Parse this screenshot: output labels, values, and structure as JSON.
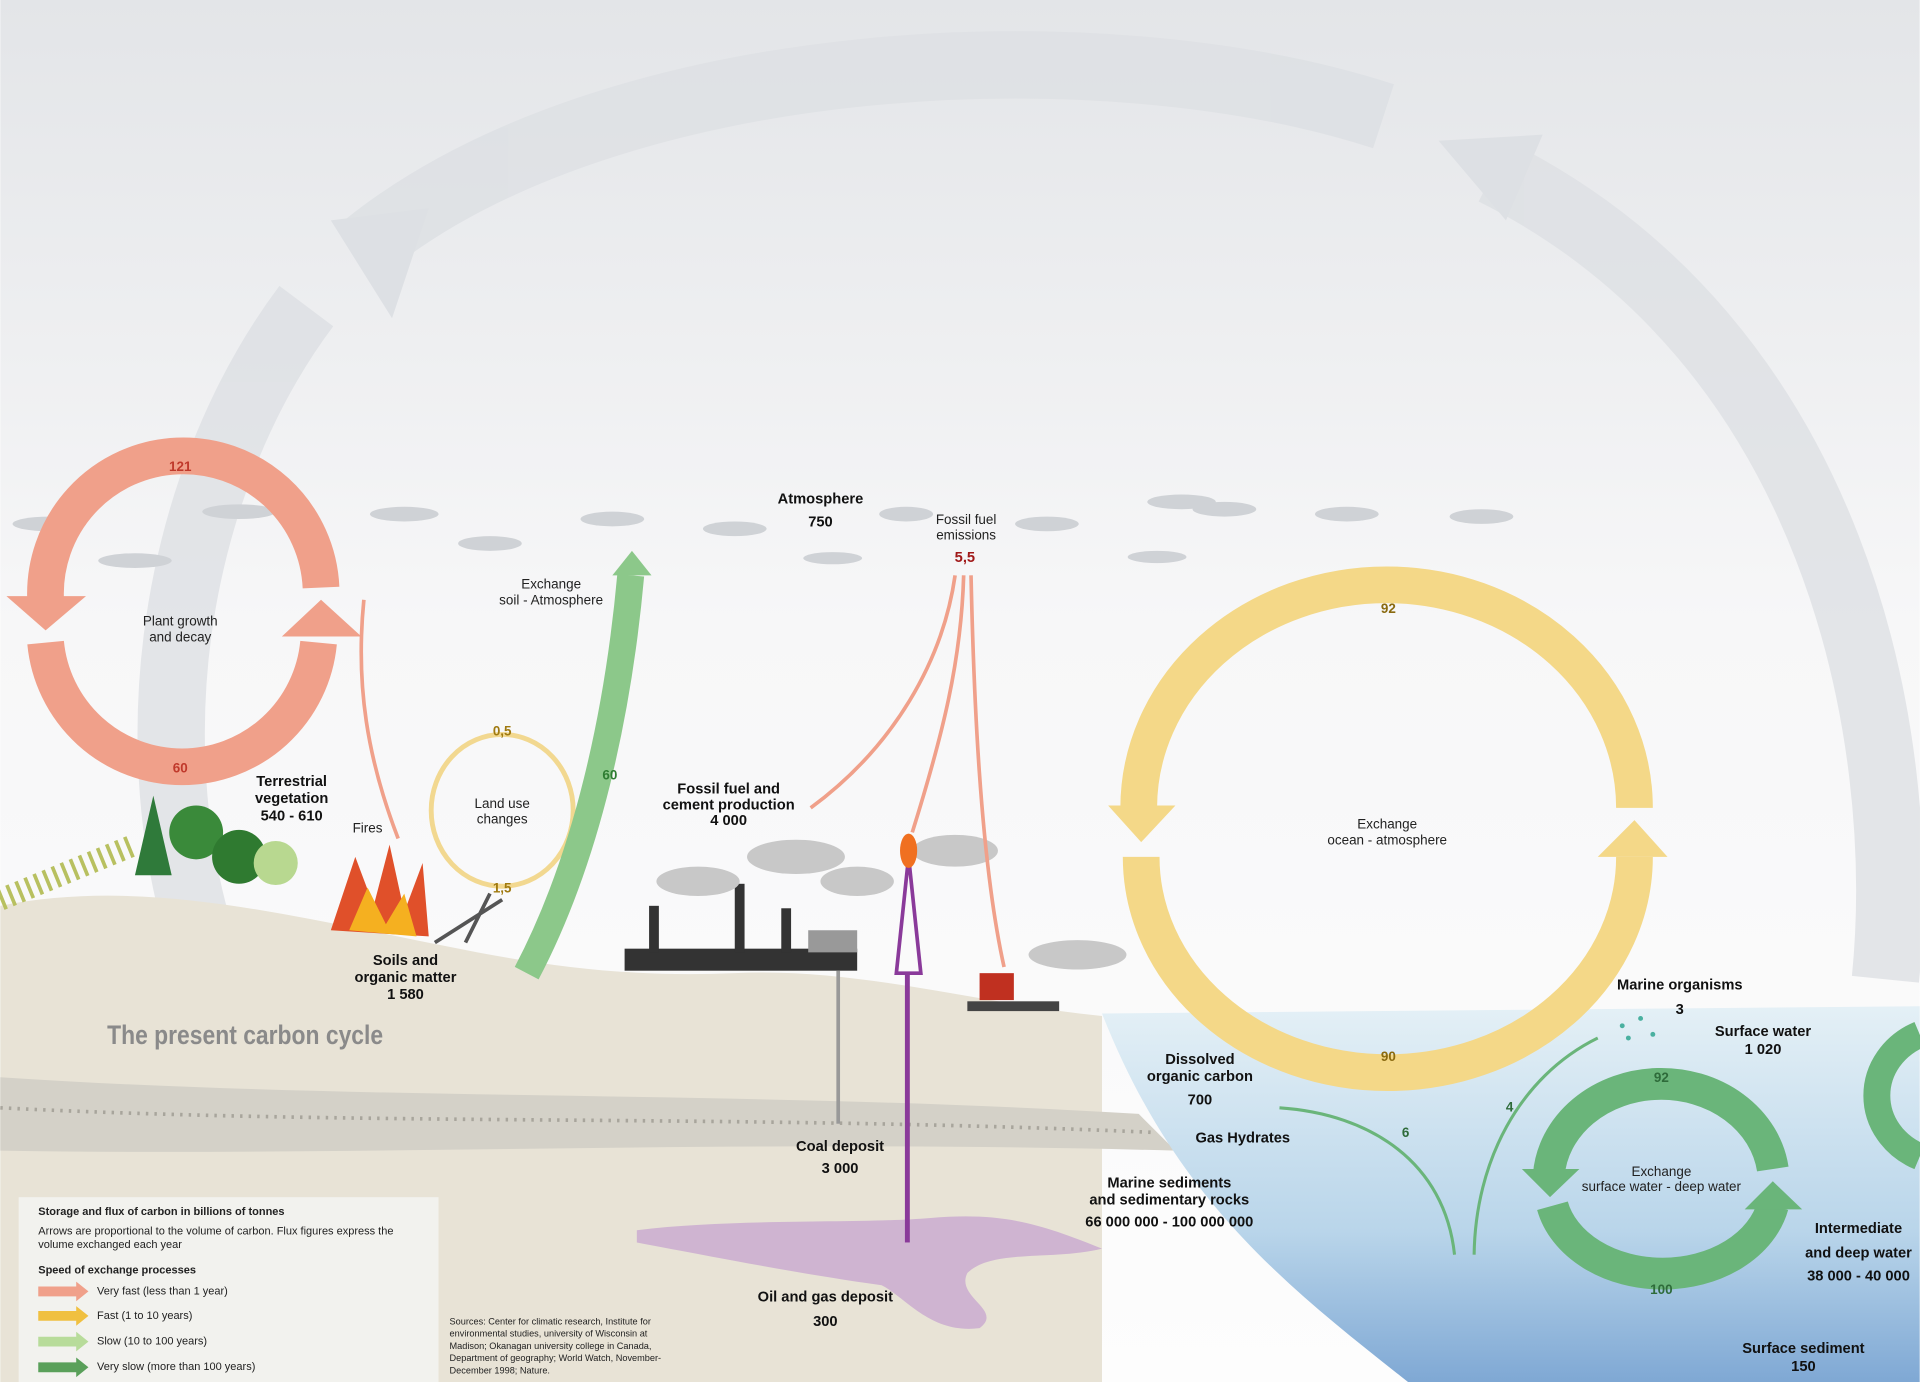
{
  "title": "The present carbon cycle",
  "nodes": [
    {
      "label": [
        "Atmosphere"
      ],
      "value": "750"
    },
    {
      "label": [
        "Terrestrial",
        "vegetation"
      ],
      "value": "540 - 610"
    },
    {
      "label": [
        "Soils and",
        "organic matter"
      ],
      "value": "1 580"
    },
    {
      "label": [
        "Fossil fuel and",
        "cement production"
      ],
      "value": "4 000"
    },
    {
      "label": [
        "Coal deposit"
      ],
      "value": "3 000"
    },
    {
      "label": [
        "Oil and gas deposit"
      ],
      "value": "300"
    },
    {
      "label": [
        "Marine sediments",
        "and sedimentary rocks"
      ],
      "value": "66 000 000 - 100 000 000"
    },
    {
      "label": [
        "Dissolved",
        "organic carbon"
      ],
      "value": "700"
    },
    {
      "label": [
        "Marine organisms"
      ],
      "value": "3"
    },
    {
      "label": [
        "Surface water"
      ],
      "value": "1 020"
    },
    {
      "label": [
        "Intermediate",
        "and deep water"
      ],
      "value": "38 000 - 40 000"
    },
    {
      "label": [
        "Surface sediment"
      ],
      "value": "150"
    }
  ],
  "processes": [
    {
      "label": [
        "Plant growth",
        "and decay"
      ],
      "fluxes": [
        "121",
        "60"
      ]
    },
    {
      "label": [
        "Land use",
        "changes"
      ],
      "fluxes": [
        "0,5",
        "1,5"
      ]
    },
    {
      "label": [
        "Exchange",
        "soil - Atmosphere"
      ],
      "fluxes": [
        "60"
      ]
    },
    {
      "label": [
        "Fossil fuel",
        "emissions"
      ],
      "fluxes": [
        "5,5"
      ]
    },
    {
      "label": [
        "Exchange",
        "ocean - atmosphere"
      ],
      "fluxes": [
        "92",
        "90"
      ]
    },
    {
      "label": [
        "Exchange",
        "surface water - deep water"
      ],
      "fluxes": [
        "92",
        "100"
      ]
    }
  ],
  "other_labels": [
    "Fires",
    "Gas Hydrates"
  ],
  "ocean_fluxes": [
    "6",
    "4"
  ],
  "legend": {
    "title": "Storage and flux of carbon in billions of tonnes",
    "description": [
      "Arrows are proportional to the volume of carbon. Flux figures express the",
      "volume exchanged each year"
    ],
    "speed_title": "Speed of exchange processes",
    "items": [
      "Very fast (less than 1 year)",
      "Fast (1 to 10 years)",
      "Slow (10 to 100 years)",
      "Very slow (more than 100 years)"
    ]
  },
  "sources": [
    "Sources: Center for climatic research, Institute for",
    "environmental studies, university of Wisconsin at",
    "Madison;  Okanagan university college in Canada,",
    "Department of geography; World Watch, November-",
    "December 1998; Nature."
  ]
}
